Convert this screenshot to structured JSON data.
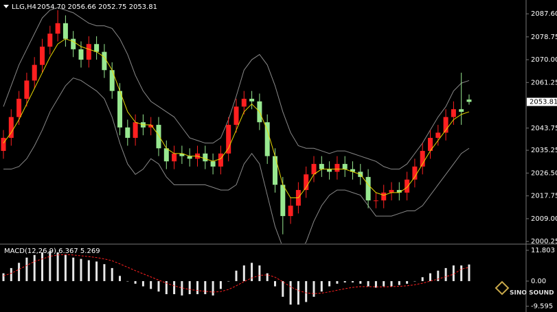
{
  "chart_data": [
    {
      "type": "candlestick",
      "title": "LLG,H4",
      "ohlc_text": "2054.70 2056.66 2052.75 2053.81",
      "open": [
        2035,
        2040,
        2048,
        2055,
        2062,
        2068,
        2075,
        2080,
        2084,
        2078,
        2074,
        2070,
        2076,
        2073,
        2066,
        2058,
        2044,
        2040,
        2046,
        2044,
        2045,
        2036,
        2031,
        2034,
        2033,
        2032,
        2034,
        2031,
        2029,
        2034,
        2045,
        2052,
        2055,
        2054,
        2046,
        2033,
        2022,
        2010,
        2014,
        2020,
        2026,
        2030,
        2028,
        2027,
        2030,
        2028,
        2027,
        2025,
        2016,
        2016,
        2019,
        2020,
        2019,
        2024,
        2029,
        2035,
        2040,
        2042,
        2048,
        2051,
        2054.7
      ],
      "high": [
        2043,
        2051,
        2058,
        2065,
        2071,
        2078,
        2083,
        2089,
        2087,
        2081,
        2077,
        2079,
        2079,
        2076,
        2069,
        2061,
        2047,
        2049,
        2049,
        2048,
        2048,
        2039,
        2037,
        2037,
        2036,
        2037,
        2037,
        2034,
        2037,
        2048,
        2055,
        2058,
        2058,
        2057,
        2049,
        2036,
        2025,
        2017,
        2023,
        2029,
        2033,
        2033,
        2031,
        2033,
        2033,
        2031,
        2030,
        2028,
        2019,
        2022,
        2023,
        2023,
        2027,
        2032,
        2038,
        2043,
        2045,
        2051,
        2054,
        2065,
        2056.66
      ],
      "low": [
        2032,
        2037,
        2045,
        2052,
        2059,
        2065,
        2072,
        2077,
        2075,
        2071,
        2067,
        2067,
        2070,
        2063,
        2055,
        2041,
        2037,
        2037,
        2041,
        2041,
        2033,
        2028,
        2028,
        2030,
        2029,
        2029,
        2028,
        2026,
        2026,
        2031,
        2042,
        2049,
        2051,
        2043,
        2030,
        2019,
        2003,
        2007,
        2011,
        2017,
        2023,
        2025,
        2024,
        2024,
        2025,
        2024,
        2022,
        2013,
        2013,
        2013,
        2016,
        2016,
        2016,
        2021,
        2026,
        2032,
        2037,
        2039,
        2045,
        2045,
        2052.75
      ],
      "close": [
        2040,
        2048,
        2055,
        2062,
        2068,
        2075,
        2080,
        2084,
        2078,
        2074,
        2070,
        2076,
        2073,
        2066,
        2058,
        2044,
        2040,
        2046,
        2044,
        2045,
        2036,
        2031,
        2034,
        2033,
        2032,
        2034,
        2031,
        2029,
        2034,
        2045,
        2052,
        2055,
        2054,
        2046,
        2033,
        2022,
        2010,
        2014,
        2020,
        2026,
        2030,
        2028,
        2027,
        2030,
        2028,
        2027,
        2025,
        2016,
        2016,
        2019,
        2020,
        2019,
        2024,
        2029,
        2035,
        2040,
        2042,
        2048,
        2051,
        2050,
        2053.81
      ],
      "up_color": "#ff2020",
      "down_color": "#98e890",
      "ma": {
        "color": "#e8d800",
        "values": [
          2038,
          2042,
          2047,
          2053,
          2059,
          2065,
          2071,
          2076,
          2078,
          2077,
          2075,
          2074,
          2073,
          2071,
          2066,
          2058,
          2050,
          2046,
          2045,
          2045,
          2041,
          2036,
          2034,
          2034,
          2033,
          2033,
          2032,
          2031,
          2032,
          2036,
          2043,
          2050,
          2053,
          2050,
          2043,
          2033,
          2022,
          2017,
          2017,
          2021,
          2026,
          2028,
          2028,
          2028,
          2028,
          2027,
          2026,
          2022,
          2019,
          2018,
          2019,
          2019,
          2021,
          2025,
          2030,
          2035,
          2039,
          2043,
          2047,
          2049,
          2050
        ]
      },
      "band_upper": {
        "color": "#8a8a8a",
        "values": [
          2052,
          2060,
          2068,
          2074,
          2080,
          2086,
          2089,
          2090,
          2089,
          2088,
          2086,
          2084,
          2083,
          2083,
          2082,
          2078,
          2072,
          2064,
          2058,
          2054,
          2052,
          2050,
          2048,
          2044,
          2040,
          2039,
          2038,
          2038,
          2040,
          2047,
          2056,
          2066,
          2070,
          2072,
          2068,
          2060,
          2050,
          2042,
          2037,
          2036,
          2036,
          2035,
          2034,
          2035,
          2035,
          2034,
          2033,
          2032,
          2031,
          2029,
          2028,
          2028,
          2030,
          2034,
          2038,
          2043,
          2048,
          2052,
          2058,
          2061,
          2062
        ]
      },
      "band_lower": {
        "color": "#8a8a8a",
        "values": [
          2028,
          2028,
          2029,
          2032,
          2037,
          2043,
          2050,
          2055,
          2060,
          2063,
          2062,
          2060,
          2058,
          2055,
          2048,
          2038,
          2030,
          2026,
          2028,
          2032,
          2030,
          2025,
          2022,
          2022,
          2022,
          2022,
          2022,
          2021,
          2020,
          2020,
          2022,
          2030,
          2034,
          2030,
          2018,
          2006,
          1998,
          1994,
          1996,
          2000,
          2008,
          2014,
          2018,
          2020,
          2020,
          2019,
          2018,
          2014,
          2010,
          2010,
          2010,
          2011,
          2012,
          2012,
          2014,
          2018,
          2022,
          2026,
          2030,
          2034,
          2036
        ]
      },
      "last_price": 2053.81,
      "ylim": [
        1999.5,
        2092.9
      ],
      "yticks": [
        {
          "value": 2087.6,
          "label": "2087.60"
        },
        2078.75,
        {
          "value": 2070,
          "label": "2070.00"
        },
        2061.25,
        2043.75,
        2035.25,
        {
          "value": 2026.5,
          "label": "2026.50"
        },
        2017.75,
        {
          "value": 2009,
          "label": "2009.00"
        },
        2000.25
      ]
    },
    {
      "type": "macd",
      "title": "MACD(12,26,9) 6.367 5.269",
      "values": [
        3,
        5,
        7,
        9,
        10,
        11,
        11.5,
        11,
        10,
        9,
        8.5,
        8,
        7.5,
        6.5,
        5,
        2,
        0,
        -1,
        -2,
        -3,
        -4,
        -5,
        -5,
        -5.5,
        -5,
        -5,
        -5,
        -5.5,
        -3,
        0,
        4,
        6,
        7,
        6,
        3,
        -2,
        -6,
        -9,
        -9,
        -8,
        -6,
        -4,
        -2,
        -1,
        -0.5,
        -0.5,
        -1,
        -2,
        -2.5,
        -2,
        -2,
        -1.5,
        -1,
        0,
        1.5,
        3,
        4,
        5,
        6,
        6,
        6.367
      ],
      "color": "#e8e8e8",
      "signal": {
        "color": "#ff2020",
        "values": [
          2,
          3,
          4.5,
          6,
          7.5,
          8.5,
          9.5,
          10,
          10.2,
          10,
          9.7,
          9.4,
          9,
          8.5,
          7.8,
          6.6,
          5.3,
          4,
          2.8,
          1.6,
          0.4,
          -0.8,
          -1.8,
          -2.6,
          -3.2,
          -3.6,
          -3.9,
          -4.2,
          -4,
          -3.2,
          -1.8,
          -0.2,
          1.2,
          2.2,
          2.4,
          1.5,
          -0.2,
          -2.2,
          -3.6,
          -4.5,
          -4.8,
          -4.6,
          -4.1,
          -3.5,
          -2.9,
          -2.4,
          -2.1,
          -2.1,
          -2.2,
          -2.2,
          -2.1,
          -2,
          -1.8,
          -1.4,
          -0.8,
          0,
          0.8,
          1.7,
          2.6,
          4.6,
          5.269
        ]
      },
      "ylim": [
        -11.3,
        13.9
      ],
      "yticks": [
        11.803,
        {
          "value": 0,
          "label": "0.00"
        },
        -9.595
      ]
    }
  ],
  "watermark": "SINO SOUND"
}
